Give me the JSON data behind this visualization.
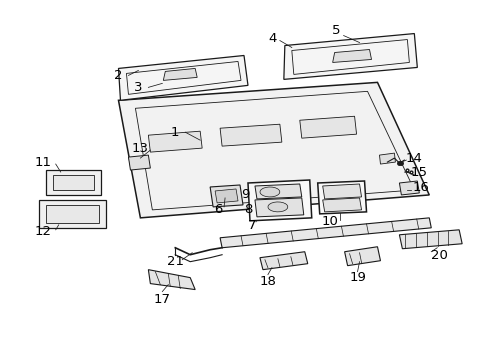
{
  "background_color": "#ffffff",
  "line_color": "#1a1a1a",
  "label_color": "#000000",
  "figsize": [
    4.89,
    3.6
  ],
  "dpi": 100,
  "font_size": 9.5,
  "bold_font_size": 10.5
}
